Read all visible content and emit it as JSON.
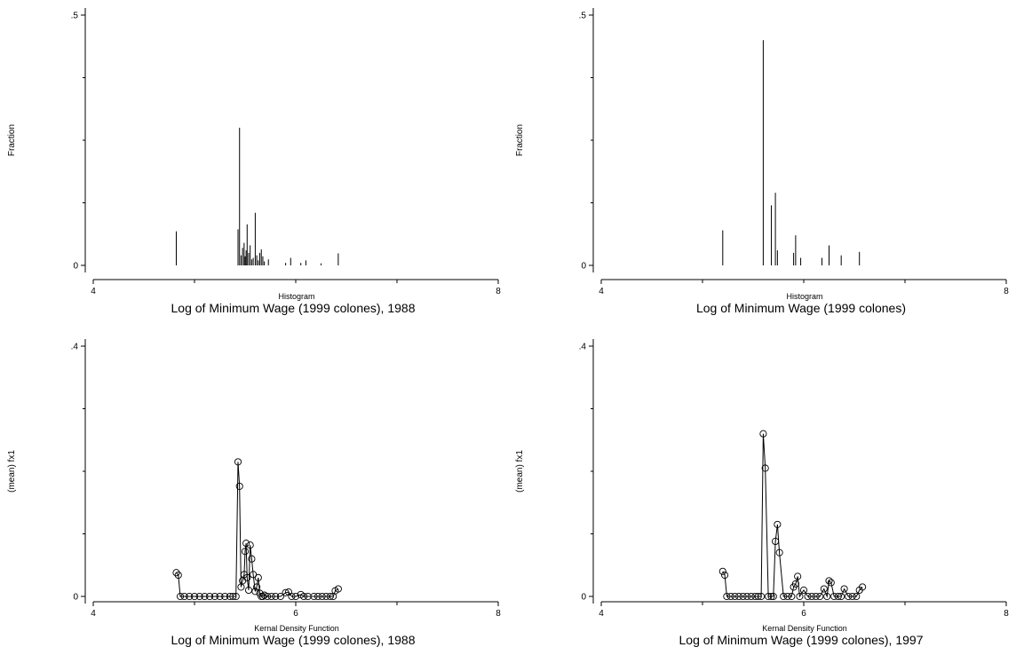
{
  "chart_data": [
    {
      "type": "bar",
      "ylabel": "Fraction",
      "subtitle": "Histogram",
      "xlabel": "Log of Minimum Wage (1999 colones), 1988",
      "xlim": [
        4,
        8
      ],
      "ylim": [
        0,
        0.5
      ],
      "xticks": [
        4,
        8
      ],
      "yticks": [
        0,
        0.5
      ],
      "ytick_labels": [
        "0",
        ".5"
      ],
      "bars": [
        {
          "x": 4.82,
          "y": 0.068
        },
        {
          "x": 5.43,
          "y": 0.072
        },
        {
          "x": 5.445,
          "y": 0.275
        },
        {
          "x": 5.46,
          "y": 0.02
        },
        {
          "x": 5.475,
          "y": 0.035
        },
        {
          "x": 5.49,
          "y": 0.045
        },
        {
          "x": 5.5,
          "y": 0.018
        },
        {
          "x": 5.51,
          "y": 0.03
        },
        {
          "x": 5.52,
          "y": 0.082
        },
        {
          "x": 5.535,
          "y": 0.025
        },
        {
          "x": 5.55,
          "y": 0.04
        },
        {
          "x": 5.565,
          "y": 0.012
        },
        {
          "x": 5.58,
          "y": 0.015
        },
        {
          "x": 5.6,
          "y": 0.105
        },
        {
          "x": 5.615,
          "y": 0.02
        },
        {
          "x": 5.63,
          "y": 0.01
        },
        {
          "x": 5.645,
          "y": 0.025
        },
        {
          "x": 5.66,
          "y": 0.032
        },
        {
          "x": 5.675,
          "y": 0.018
        },
        {
          "x": 5.69,
          "y": 0.008
        },
        {
          "x": 5.73,
          "y": 0.012
        },
        {
          "x": 5.9,
          "y": 0.005
        },
        {
          "x": 5.95,
          "y": 0.015
        },
        {
          "x": 6.05,
          "y": 0.005
        },
        {
          "x": 6.1,
          "y": 0.01
        },
        {
          "x": 6.25,
          "y": 0.004
        },
        {
          "x": 6.42,
          "y": 0.024
        }
      ]
    },
    {
      "type": "bar",
      "ylabel": "Fraction",
      "subtitle": "Histogram",
      "xlabel": "Log of Minimum Wage (1999 colones)",
      "xlim": [
        4,
        8
      ],
      "ylim": [
        0,
        0.5
      ],
      "xticks": [
        4,
        8
      ],
      "yticks": [
        0,
        0.5
      ],
      "ytick_labels": [
        "0",
        ".5"
      ],
      "bars": [
        {
          "x": 5.2,
          "y": 0.07
        },
        {
          "x": 5.6,
          "y": 0.45
        },
        {
          "x": 5.68,
          "y": 0.12
        },
        {
          "x": 5.72,
          "y": 0.145
        },
        {
          "x": 5.74,
          "y": 0.03
        },
        {
          "x": 5.9,
          "y": 0.025
        },
        {
          "x": 5.92,
          "y": 0.06
        },
        {
          "x": 5.97,
          "y": 0.015
        },
        {
          "x": 6.18,
          "y": 0.015
        },
        {
          "x": 6.25,
          "y": 0.04
        },
        {
          "x": 6.37,
          "y": 0.02
        },
        {
          "x": 6.55,
          "y": 0.027
        }
      ]
    },
    {
      "type": "line",
      "ylabel": "(mean) fx1",
      "subtitle": "Kernal Density Function",
      "xlabel": "Log of Minimum Wage (1999 colones), 1988",
      "xlim": [
        4,
        8
      ],
      "ylim": [
        0,
        0.4
      ],
      "xticks": [
        4,
        6,
        8
      ],
      "yticks": [
        0,
        0.4
      ],
      "ytick_labels": [
        "0",
        ".4"
      ],
      "x": [
        4.82,
        4.84,
        4.86,
        4.9,
        4.95,
        5.0,
        5.05,
        5.1,
        5.15,
        5.2,
        5.25,
        5.3,
        5.35,
        5.38,
        5.41,
        5.43,
        5.445,
        5.46,
        5.475,
        5.49,
        5.5,
        5.51,
        5.52,
        5.535,
        5.55,
        5.565,
        5.58,
        5.6,
        5.615,
        5.63,
        5.645,
        5.66,
        5.675,
        5.69,
        5.72,
        5.76,
        5.8,
        5.85,
        5.9,
        5.93,
        5.96,
        6.0,
        6.05,
        6.08,
        6.12,
        6.18,
        6.22,
        6.26,
        6.3,
        6.34,
        6.37,
        6.39,
        6.42
      ],
      "y": [
        0.038,
        0.034,
        0.0,
        0.0,
        0.0,
        0.0,
        0.0,
        0.0,
        0.0,
        0.0,
        0.0,
        0.0,
        0.0,
        0.0,
        0.0,
        0.215,
        0.176,
        0.015,
        0.025,
        0.035,
        0.072,
        0.085,
        0.03,
        0.01,
        0.082,
        0.06,
        0.035,
        0.008,
        0.015,
        0.03,
        0.005,
        0.0,
        0.0,
        0.002,
        0.0,
        0.0,
        0.0,
        0.0,
        0.006,
        0.007,
        0.0,
        0.0,
        0.003,
        0.0,
        0.0,
        0.0,
        0.0,
        0.0,
        0.0,
        0.0,
        0.0,
        0.009,
        0.012
      ]
    },
    {
      "type": "line",
      "ylabel": "(mean) fx1",
      "subtitle": "Kernal Density Function",
      "xlabel": "Log of Minimum Wage (1999 colones), 1997",
      "xlim": [
        4,
        8
      ],
      "ylim": [
        0,
        0.4
      ],
      "xticks": [
        4,
        6,
        8
      ],
      "yticks": [
        0,
        0.4
      ],
      "ytick_labels": [
        "0",
        ".4"
      ],
      "x": [
        5.2,
        5.22,
        5.24,
        5.28,
        5.32,
        5.36,
        5.4,
        5.44,
        5.48,
        5.52,
        5.55,
        5.58,
        5.6,
        5.62,
        5.65,
        5.68,
        5.7,
        5.72,
        5.74,
        5.76,
        5.8,
        5.84,
        5.88,
        5.9,
        5.92,
        5.94,
        5.96,
        6.0,
        6.04,
        6.08,
        6.12,
        6.16,
        6.2,
        6.23,
        6.25,
        6.27,
        6.3,
        6.34,
        6.37,
        6.4,
        6.44,
        6.48,
        6.52,
        6.55,
        6.58
      ],
      "y": [
        0.04,
        0.034,
        0.0,
        0.0,
        0.0,
        0.0,
        0.0,
        0.0,
        0.0,
        0.0,
        0.0,
        0.0,
        0.26,
        0.205,
        0.0,
        0.0,
        0.0,
        0.088,
        0.115,
        0.07,
        0.0,
        0.0,
        0.0,
        0.015,
        0.02,
        0.032,
        0.0,
        0.01,
        0.0,
        0.0,
        0.0,
        0.0,
        0.012,
        0.0,
        0.025,
        0.022,
        0.0,
        0.0,
        0.0,
        0.012,
        0.0,
        0.0,
        0.0,
        0.01,
        0.015
      ]
    }
  ]
}
